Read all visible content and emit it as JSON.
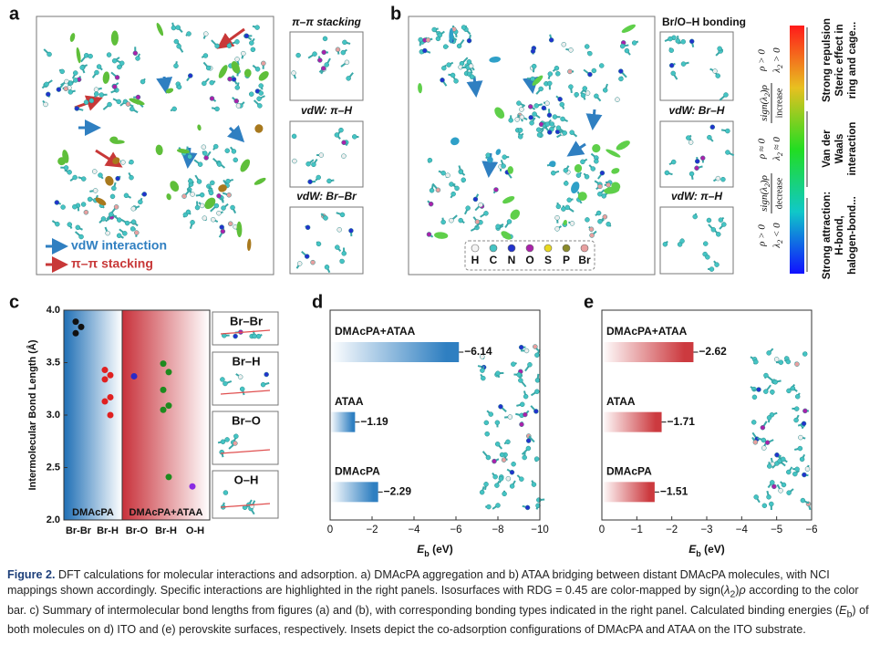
{
  "panel_a": {
    "label": "a",
    "insets": [
      "π–π stacking",
      "vdW: π–H",
      "vdW: Br–Br"
    ],
    "legend": [
      "vdW interaction",
      "π–π stacking"
    ]
  },
  "panel_b": {
    "label": "b",
    "insets": [
      "Br/O–H bonding",
      "vdW: Br–H",
      "vdW: π–H"
    ],
    "elements": [
      "H",
      "C",
      "N",
      "O",
      "S",
      "P",
      "Br"
    ]
  },
  "colorbar": {
    "regions": [
      [
        "Strong repulsion",
        "Steric effect in",
        "ring and cage..."
      ],
      [
        "Van der",
        "Waals",
        "interaction"
      ],
      [
        "Strong attraction:",
        "H-bond,",
        "halogen-bond..."
      ]
    ],
    "conditions": [
      [
        "ρ > 0",
        "λ",
        "2",
        " > 0"
      ],
      [
        "ρ ≈ 0",
        "λ",
        "2",
        " ≈ 0"
      ],
      [
        "ρ > 0",
        "λ",
        "2",
        " < 0"
      ]
    ],
    "trends": [
      [
        "sign(λ",
        "2",
        ")ρ",
        "increase"
      ],
      [
        "sign(λ",
        "2",
        ")ρ",
        "decrease"
      ]
    ]
  },
  "chart_data": [
    {
      "type": "strip",
      "label": "c",
      "ylabel": "Intermolecular Bond Length (Å)",
      "ylim": [
        2.0,
        4.0
      ],
      "yticks": [
        {
          "value": 2.0,
          "label": "2.0"
        },
        2.5,
        {
          "value": 3.0,
          "label": "3.0"
        },
        3.5,
        {
          "value": 4.0,
          "label": "4.0"
        }
      ],
      "groups": [
        {
          "name": "DMAcPA",
          "color": "#1f6fb5",
          "categories": [
            "Br-Br",
            "Br-H"
          ],
          "colors": [
            "#111111",
            "#e02020"
          ],
          "values": [
            [
              3.89,
              3.84,
              3.78
            ],
            [
              3.43,
              3.38,
              3.34,
              3.17,
              3.13,
              3.0
            ]
          ]
        },
        {
          "name": "DMAcPA+ATAA",
          "color": "#c8313a",
          "categories": [
            "Br-O",
            "Br-H",
            "O-H"
          ],
          "colors": [
            "#2a2ac8",
            "#1f8a1f",
            "#8a2be2"
          ],
          "values": [
            [
              3.37
            ],
            [
              3.49,
              3.41,
              3.24,
              3.09,
              3.05,
              2.41
            ],
            [
              2.32
            ]
          ]
        }
      ],
      "insets": [
        "Br–Br",
        "Br–H",
        "Br–O",
        "O–H"
      ]
    },
    {
      "type": "hbar",
      "label": "d",
      "color": "#2f7fc1",
      "categories": [
        "DMAcPA+ATAA",
        "ATAA",
        "DMAcPA"
      ],
      "values": [
        -6.14,
        -1.19,
        -2.29
      ],
      "value_labels": [
        "−6.14",
        "−1.19",
        "−2.29"
      ],
      "xlim": [
        0,
        -10
      ],
      "xticks": [
        0,
        {
          "value": -2,
          "label": "−2"
        },
        {
          "value": -4,
          "label": "−4"
        },
        {
          "value": -6,
          "label": "−6"
        },
        {
          "value": -8,
          "label": "−8"
        },
        {
          "value": -10,
          "label": "−10"
        }
      ],
      "xlabel": {
        "symbol": "E",
        "subscript": "b",
        "unit": " (eV)"
      }
    },
    {
      "type": "hbar",
      "label": "e",
      "color": "#cc3a3f",
      "categories": [
        "DMAcPA+ATAA",
        "ATAA",
        "DMAcPA"
      ],
      "values": [
        -2.62,
        -1.71,
        -1.51
      ],
      "value_labels": [
        "−2.62",
        "−1.71",
        "−1.51"
      ],
      "xlim": [
        0,
        -6
      ],
      "xticks": [
        0,
        {
          "value": -1,
          "label": "−1"
        },
        {
          "value": -2,
          "label": "−2"
        },
        {
          "value": -3,
          "label": "−3"
        },
        {
          "value": -4,
          "label": "−4"
        },
        {
          "value": -5,
          "label": "−5"
        },
        {
          "value": -6,
          "label": "−6"
        }
      ],
      "xlabel": {
        "symbol": "E",
        "subscript": "b",
        "unit": " (eV)"
      }
    }
  ],
  "caption": {
    "label": "Figure 2.",
    "parts": [
      "DFT calculations for molecular interactions and adsorption. a) DMAcPA aggregation and b) ATAA bridging between distant DMAcPA molecules, with NCI mappings shown accordingly. Specific interactions are highlighted in the right panels. Isosurfaces with RDG = 0.45 are color-mapped by sign(",
      "λ",
      "2",
      ")",
      "ρ",
      " according to the color bar. c) Summary of intermolecular bond lengths from figures (a) and (b), with corresponding bonding types indicated in the right panel. Calculated binding energies (",
      "E",
      "b",
      ") of both molecules on d) ITO and (e) perovskite surfaces, respectively. Insets depict the co-adsorption configurations of DMAcPA and ATAA on the ITO substrate."
    ]
  }
}
